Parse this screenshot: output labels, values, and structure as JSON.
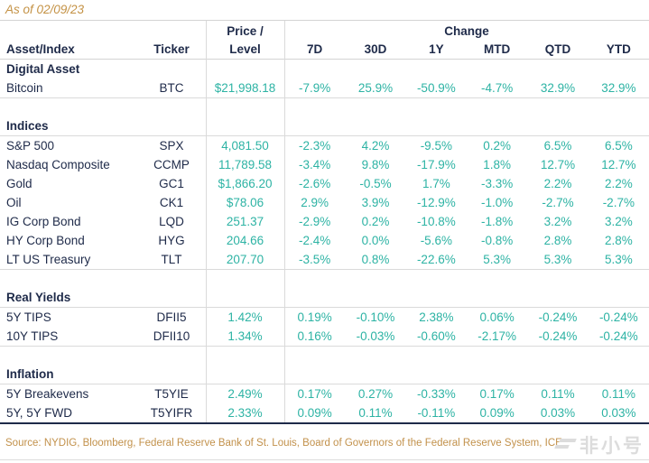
{
  "meta": {
    "as_of": "As of 02/09/23",
    "source": "Source: NYDIG, Bloomberg, Federal Reserve Bank of St. Louis, Board of Governors of the Federal Reserve System, ICE",
    "watermark": "非小号"
  },
  "colors": {
    "navy": "#1e2a49",
    "teal": "#2db3a4",
    "gold": "#c49245",
    "light_border": "#dadada",
    "watermark_gray": "#dcdcdc"
  },
  "chart_data": {
    "type": "table",
    "title": "As of 02/09/23",
    "header": {
      "asset": "Asset/Index",
      "ticker": "Ticker",
      "price_line1": "Price /",
      "price_line2": "Level",
      "change_group": "Change",
      "change_cols": [
        "7D",
        "30D",
        "1Y",
        "MTD",
        "QTD",
        "YTD"
      ]
    },
    "sections": [
      {
        "label": "Digital Asset",
        "rows": [
          {
            "asset": "Bitcoin",
            "ticker": "BTC",
            "price": "$21,998.18",
            "changes": [
              "-7.9%",
              "25.9%",
              "-50.9%",
              "-4.7%",
              "32.9%",
              "32.9%"
            ]
          }
        ]
      },
      {
        "label": "Indices",
        "rows": [
          {
            "asset": "S&P 500",
            "ticker": "SPX",
            "price": "4,081.50",
            "changes": [
              "-2.3%",
              "4.2%",
              "-9.5%",
              "0.2%",
              "6.5%",
              "6.5%"
            ]
          },
          {
            "asset": "Nasdaq Composite",
            "ticker": "CCMP",
            "price": "11,789.58",
            "changes": [
              "-3.4%",
              "9.8%",
              "-17.9%",
              "1.8%",
              "12.7%",
              "12.7%"
            ]
          },
          {
            "asset": "Gold",
            "ticker": "GC1",
            "price": "$1,866.20",
            "changes": [
              "-2.6%",
              "-0.5%",
              "1.7%",
              "-3.3%",
              "2.2%",
              "2.2%"
            ]
          },
          {
            "asset": "Oil",
            "ticker": "CK1",
            "price": "$78.06",
            "changes": [
              "2.9%",
              "3.9%",
              "-12.9%",
              "-1.0%",
              "-2.7%",
              "-2.7%"
            ]
          },
          {
            "asset": "IG Corp Bond",
            "ticker": "LQD",
            "price": "251.37",
            "changes": [
              "-2.9%",
              "0.2%",
              "-10.8%",
              "-1.8%",
              "3.2%",
              "3.2%"
            ]
          },
          {
            "asset": "HY Corp Bond",
            "ticker": "HYG",
            "price": "204.66",
            "changes": [
              "-2.4%",
              "0.0%",
              "-5.6%",
              "-0.8%",
              "2.8%",
              "2.8%"
            ]
          },
          {
            "asset": "LT US Treasury",
            "ticker": "TLT",
            "price": "207.70",
            "changes": [
              "-3.5%",
              "0.8%",
              "-22.6%",
              "5.3%",
              "5.3%",
              "5.3%"
            ]
          }
        ]
      },
      {
        "label": "Real Yields",
        "rows": [
          {
            "asset": "5Y TIPS",
            "ticker": "DFII5",
            "price": "1.42%",
            "changes": [
              "0.19%",
              "-0.10%",
              "2.38%",
              "0.06%",
              "-0.24%",
              "-0.24%"
            ]
          },
          {
            "asset": "10Y TIPS",
            "ticker": "DFII10",
            "price": "1.34%",
            "changes": [
              "0.16%",
              "-0.03%",
              "-0.60%",
              "-2.17%",
              "-0.24%",
              "-0.24%"
            ]
          }
        ]
      },
      {
        "label": "Inflation",
        "rows": [
          {
            "asset": "5Y Breakevens",
            "ticker": "T5YIE",
            "price": "2.49%",
            "changes": [
              "0.17%",
              "0.27%",
              "-0.33%",
              "0.17%",
              "0.11%",
              "0.11%"
            ]
          },
          {
            "asset": "5Y, 5Y FWD",
            "ticker": "T5YIFR",
            "price": "2.33%",
            "changes": [
              "0.09%",
              "0.11%",
              "-0.11%",
              "0.09%",
              "0.03%",
              "0.03%"
            ]
          }
        ]
      }
    ]
  }
}
